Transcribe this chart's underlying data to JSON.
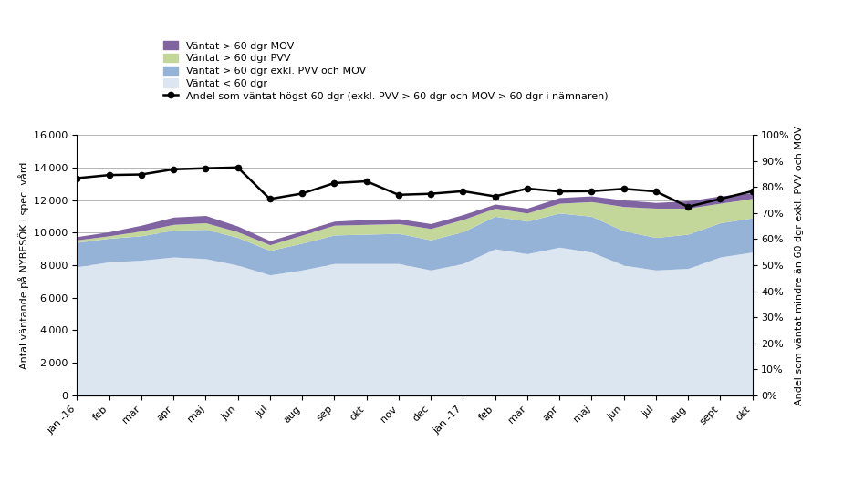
{
  "x_labels": [
    "jan -16",
    "feb",
    "mar",
    "apr",
    "maj",
    "jun",
    "jul",
    "aug",
    "sep",
    "okt",
    "nov",
    "dec",
    "jan -17",
    "feb",
    "mar",
    "apr",
    "maj",
    "jun",
    "jul",
    "aug",
    "sept",
    "okt"
  ],
  "vantat_lt60": [
    7900,
    8200,
    8300,
    8500,
    8400,
    8000,
    7400,
    7700,
    8100,
    8100,
    8100,
    7700,
    8100,
    9000,
    8700,
    9100,
    8800,
    8000,
    7700,
    7800,
    8500,
    8800
  ],
  "vantat_gt60_exkl": [
    1500,
    1450,
    1500,
    1650,
    1800,
    1700,
    1500,
    1650,
    1750,
    1800,
    1850,
    1850,
    1950,
    2000,
    2000,
    2100,
    2200,
    2100,
    2000,
    2100,
    2100,
    2100
  ],
  "vantat_gt60_pvv": [
    150,
    150,
    300,
    350,
    400,
    350,
    350,
    500,
    600,
    600,
    600,
    700,
    750,
    500,
    500,
    600,
    900,
    1500,
    1800,
    1600,
    1200,
    1200
  ],
  "vantat_gt60_mov": [
    200,
    250,
    350,
    450,
    450,
    350,
    250,
    250,
    250,
    300,
    300,
    300,
    300,
    250,
    300,
    350,
    350,
    400,
    350,
    450,
    450,
    350
  ],
  "line_pct": [
    0.834,
    0.846,
    0.848,
    0.868,
    0.872,
    0.875,
    0.754,
    0.775,
    0.815,
    0.822,
    0.77,
    0.774,
    0.784,
    0.764,
    0.794,
    0.783,
    0.784,
    0.793,
    0.783,
    0.724,
    0.754,
    0.784
  ],
  "color_lt60": "#dce6f1",
  "color_gt60_exkl": "#95b3d7",
  "color_gt60_pvv": "#c4d79b",
  "color_gt60_mov": "#8064a2",
  "color_line": "#000000",
  "ylabel_left": "Antal väntande på NYBESÖK i spec. vård",
  "ylabel_right": "Andel som väntat mindre än 60 dgr exkl. PVV och MOV",
  "ylim_left": [
    0,
    16000
  ],
  "ylim_right": [
    0,
    1.0
  ],
  "legend_labels": [
    "Väntat > 60 dgr MOV",
    "Väntat > 60 dgr PVV",
    "Väntat > 60 dgr exkl. PVV och MOV",
    "Väntat < 60 dgr",
    "Andel som väntat högst 60 dgr (exkl. PVV > 60 dgr och MOV > 60 dgr i nämnaren)"
  ],
  "yticks_left": [
    0,
    2000,
    4000,
    6000,
    8000,
    10000,
    12000,
    14000,
    16000
  ],
  "yticks_right": [
    0.0,
    0.1,
    0.2,
    0.3,
    0.4,
    0.5,
    0.6,
    0.7,
    0.8,
    0.9,
    1.0
  ],
  "title_fontsize": 8,
  "axis_fontsize": 8,
  "tick_fontsize": 8,
  "legend_fontsize": 8
}
